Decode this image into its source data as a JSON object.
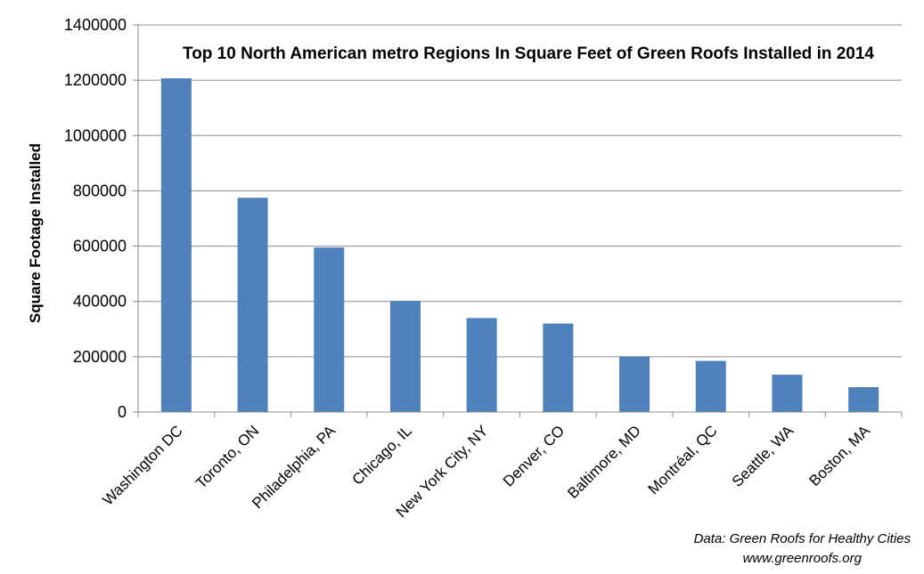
{
  "chart_data": {
    "type": "bar",
    "title": "Top 10 North American metro Regions In Square Feet of Green Roofs Installed in 2014",
    "xlabel": "",
    "ylabel": "Square Footage Installed",
    "categories": [
      "Washington DC",
      "Toronto, ON",
      "Philadelphia, PA",
      "Chicago, IL",
      "New York City, NY",
      "Denver, CO",
      "Baltimore, MD",
      "Montréal, QC",
      "Seattle, WA",
      "Boston, MA"
    ],
    "values": [
      1207000,
      775000,
      595000,
      402000,
      340000,
      320000,
      201000,
      185000,
      135000,
      90000
    ],
    "ylim": [
      0,
      1400000
    ],
    "yticks": [
      "0",
      "200000",
      "400000",
      "600000",
      "800000",
      "1000000",
      "1200000",
      "1400000"
    ],
    "grid": true,
    "legend": "none",
    "bar_color": "#4f81bd",
    "source_lines": [
      "Data: Green Roofs for Healthy Cities",
      "www.greenroofs.org"
    ]
  }
}
